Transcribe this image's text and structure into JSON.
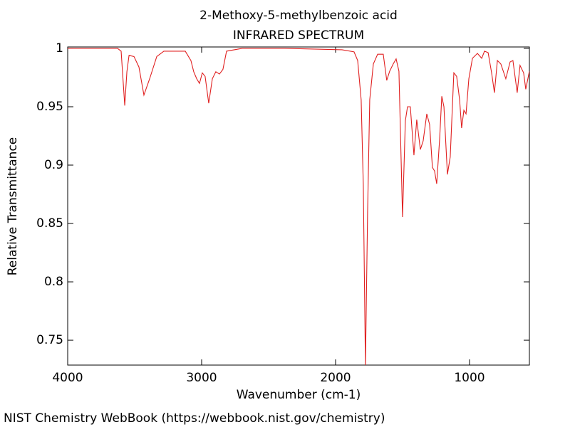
{
  "chart_data": {
    "type": "line",
    "title": "2-Methoxy-5-methylbenzoic acid",
    "subtitle": "INFRARED SPECTRUM",
    "x_label": "Wavenumber (cm-1)",
    "y_label": "Relative Transmittance",
    "credit": "NIST Chemistry WebBook (https://webbook.nist.gov/chemistry)",
    "x": [
      4000,
      3628,
      3601,
      3574,
      3558,
      3542,
      3505,
      3468,
      3431,
      3388,
      3335,
      3282,
      3122,
      3080,
      3059,
      3037,
      3016,
      2995,
      2974,
      2947,
      2920,
      2894,
      2867,
      2841,
      2814,
      2697,
      2378,
      1952,
      1862,
      1835,
      1809,
      1793,
      1777,
      1761,
      1745,
      1718,
      1686,
      1644,
      1618,
      1596,
      1570,
      1548,
      1527,
      1500,
      1479,
      1463,
      1442,
      1415,
      1394,
      1367,
      1346,
      1319,
      1298,
      1277,
      1261,
      1245,
      1223,
      1207,
      1191,
      1165,
      1144,
      1117,
      1096,
      1074,
      1059,
      1042,
      1026,
      1005,
      978,
      941,
      909,
      888,
      861,
      835,
      814,
      792,
      766,
      729,
      697,
      676,
      644,
      623,
      596,
      580,
      553
    ],
    "series": [
      {
        "name": "2-Methoxy-5-methylbenzoic acid",
        "color": "#e02020",
        "values": [
          1.0,
          1.0,
          0.9976,
          0.951,
          0.98,
          0.994,
          0.993,
          0.984,
          0.96,
          0.974,
          0.993,
          0.9976,
          0.9976,
          0.9896,
          0.98,
          0.974,
          0.97,
          0.979,
          0.976,
          0.953,
          0.974,
          0.98,
          0.978,
          0.982,
          0.9976,
          1.0,
          1.0,
          0.9988,
          0.997,
          0.9896,
          0.956,
          0.883,
          0.728,
          0.859,
          0.956,
          0.9866,
          0.995,
          0.995,
          0.9726,
          0.9805,
          0.9866,
          0.991,
          0.9805,
          0.8555,
          0.938,
          0.95,
          0.95,
          0.9085,
          0.939,
          0.9134,
          0.9207,
          0.9439,
          0.9348,
          0.898,
          0.895,
          0.884,
          0.9226,
          0.959,
          0.95,
          0.892,
          0.907,
          0.979,
          0.976,
          0.956,
          0.9317,
          0.947,
          0.9439,
          0.974,
          0.9915,
          0.9957,
          0.9915,
          0.9976,
          0.9963,
          0.979,
          0.962,
          0.9896,
          0.9866,
          0.974,
          0.9884,
          0.9896,
          0.962,
          0.9854,
          0.979,
          0.965,
          0.9805
        ]
      }
    ],
    "xlim": [
      4000,
      553
    ],
    "ylim": [
      0.7287,
      1.0012
    ],
    "xticks": [
      4000,
      3000,
      2000,
      1000
    ],
    "yticks": [
      1,
      0.95,
      0.9,
      0.85,
      0.8,
      0.75
    ],
    "grid": false
  }
}
